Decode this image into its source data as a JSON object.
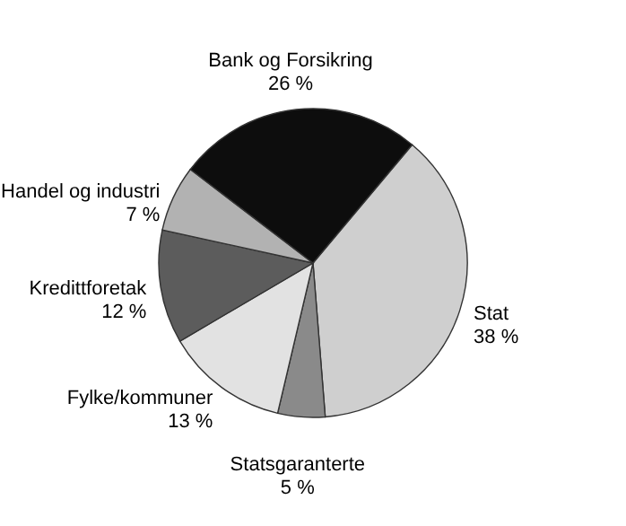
{
  "chart_data": {
    "type": "pie",
    "categories": [
      "Stat",
      "Statsgaranterte",
      "Fylke/kommuner",
      "Kredittforetak",
      "Handel og industri",
      "Bank og Forsikring"
    ],
    "values": [
      38,
      5,
      13,
      12,
      7,
      26
    ],
    "value_labels": [
      "38 %",
      "5 %",
      "13 %",
      "12 %",
      "7 %",
      "26 %"
    ],
    "colors": [
      "#cfcfcf",
      "#8a8a8a",
      "#e2e2e2",
      "#5c5c5c",
      "#b2b2b2",
      "#0d0d0d"
    ],
    "legend": false
  }
}
